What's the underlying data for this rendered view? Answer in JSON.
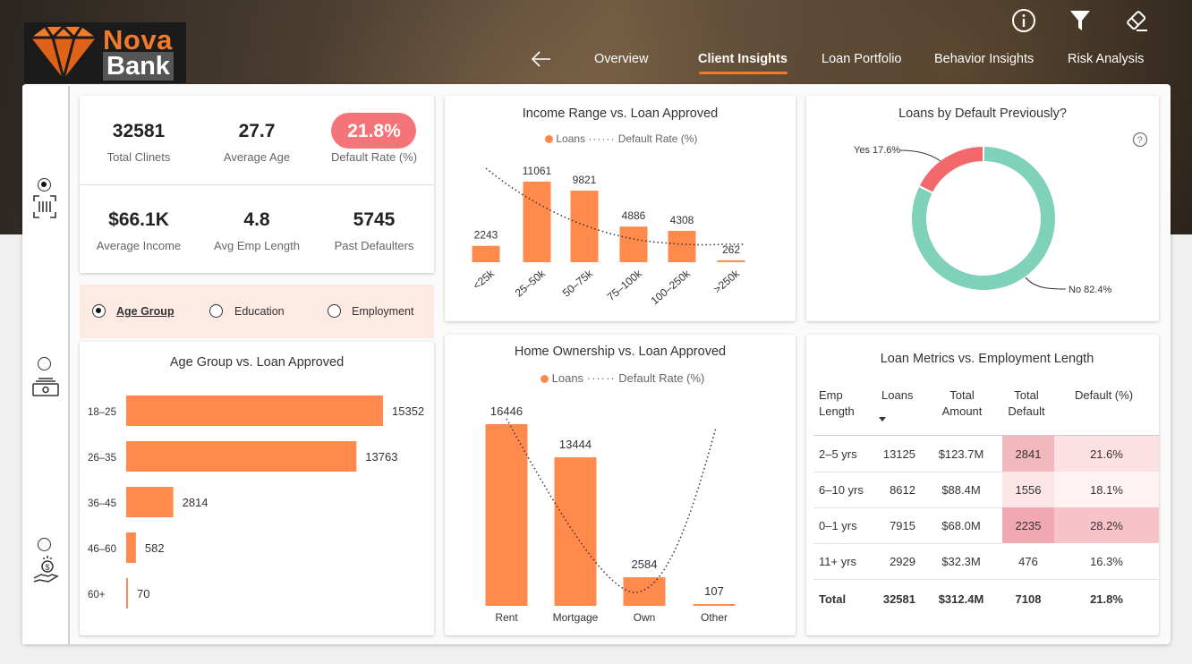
{
  "brand": {
    "name_top": "Nova",
    "name_bottom": "Bank"
  },
  "nav": {
    "items": [
      {
        "label": "Overview"
      },
      {
        "label": "Client Insights"
      },
      {
        "label": "Loan Portfolio"
      },
      {
        "label": "Behavior Insights"
      },
      {
        "label": "Risk Analysis"
      }
    ],
    "active": "Client Insights"
  },
  "kpis": [
    {
      "value": "32581",
      "label": "Total Clinets"
    },
    {
      "value": "27.7",
      "label": "Average Age"
    },
    {
      "value": "21.8%",
      "label": "Default Rate (%)"
    },
    {
      "value": "$66.1K",
      "label": "Average Income"
    },
    {
      "value": "4.8",
      "label": "Avg Emp Length"
    },
    {
      "value": "5745",
      "label": "Past Defaulters"
    }
  ],
  "slicer": {
    "options": [
      "Age Group",
      "Education",
      "Employment"
    ],
    "selected": "Age Group"
  },
  "colors": {
    "accent": "#f07b2a",
    "bar": "#ff8a4c",
    "pill": "#f47479",
    "donut_no": "#7fd1b9",
    "donut_yes": "#f2686b"
  },
  "chart_data": [
    {
      "type": "bar",
      "title": "Income Range vs. Loan Approved",
      "legend": [
        "Loans",
        "Default Rate (%)"
      ],
      "categories": [
        "<25k",
        "25–50k",
        "50–75k",
        "75–100k",
        "100–250k",
        ">250k"
      ],
      "series": [
        {
          "name": "Loans",
          "values": [
            2243,
            11061,
            9821,
            4886,
            4308,
            262
          ]
        }
      ]
    },
    {
      "type": "pie",
      "title": "Loans by Default Previously?",
      "slices": [
        {
          "label": "No",
          "value": 82.4,
          "text": "No 82.4%"
        },
        {
          "label": "Yes",
          "value": 17.6,
          "text": "Yes 17.6%"
        }
      ]
    },
    {
      "type": "bar",
      "title": "Age Group vs. Loan Approved",
      "orientation": "horizontal",
      "categories": [
        "18–25",
        "26–35",
        "36–45",
        "46–60",
        "60+"
      ],
      "values": [
        15352,
        13763,
        2814,
        582,
        70
      ]
    },
    {
      "type": "bar",
      "title": "Home Ownership vs. Loan Approved",
      "legend": [
        "Loans",
        "Default Rate (%)"
      ],
      "categories": [
        "Rent",
        "Mortgage",
        "Own",
        "Other"
      ],
      "series": [
        {
          "name": "Loans",
          "values": [
            16446,
            13444,
            2584,
            107
          ]
        }
      ]
    },
    {
      "type": "table",
      "title": "Loan Metrics vs. Employment Length",
      "columns": [
        "Emp Length",
        "Loans",
        "Total Amount",
        "Total Default",
        "Default (%)"
      ],
      "rows": [
        [
          "2–5 yrs",
          "13125",
          "$123.7M",
          "2841",
          "21.6%"
        ],
        [
          "6–10 yrs",
          "8612",
          "$88.4M",
          "1556",
          "18.1%"
        ],
        [
          "0–1 yrs",
          "7915",
          "$68.0M",
          "2235",
          "28.2%"
        ],
        [
          "11+ yrs",
          "2929",
          "$32.3M",
          "476",
          "16.3%"
        ]
      ],
      "total": [
        "Total",
        "32581",
        "$312.4M",
        "7108",
        "21.8%"
      ]
    }
  ]
}
